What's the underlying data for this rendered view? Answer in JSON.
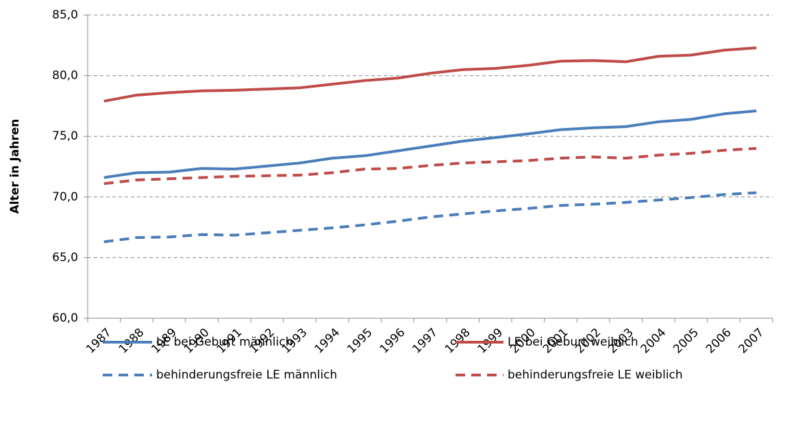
{
  "chart_data": {
    "type": "line",
    "y_label": "Alter in Jahren",
    "categories": [
      "1987",
      "1988",
      "1989",
      "1990",
      "1991",
      "1992",
      "1993",
      "1994",
      "1995",
      "1996",
      "1997",
      "1998",
      "1999",
      "2000",
      "2001",
      "2002",
      "2003",
      "2004",
      "2005",
      "2006",
      "2007"
    ],
    "ylim": [
      60,
      85
    ],
    "yticks": [
      {
        "value": 60,
        "label": "60,0"
      },
      {
        "value": 65,
        "label": "65,0"
      },
      {
        "value": 70,
        "label": "70,0"
      },
      {
        "value": 75,
        "label": "75,0"
      },
      {
        "value": 80,
        "label": "80,0"
      },
      {
        "value": 85,
        "label": "85,0"
      }
    ],
    "grid": true,
    "series": [
      {
        "name": "LE bei Geburt männlich",
        "color": "#4a7ebb",
        "dashed": false,
        "values": [
          71.6,
          72.0,
          72.05,
          72.35,
          72.3,
          72.55,
          72.8,
          73.2,
          73.4,
          73.8,
          74.2,
          74.6,
          74.9,
          75.2,
          75.55,
          75.7,
          75.8,
          76.2,
          76.4,
          76.85,
          77.1
        ]
      },
      {
        "name": "LE bei Geburt weiblich",
        "color": "#be4b48",
        "dashed": false,
        "values": [
          77.9,
          78.4,
          78.6,
          78.75,
          78.8,
          78.9,
          79.0,
          79.3,
          79.6,
          79.8,
          80.2,
          80.5,
          80.6,
          80.85,
          81.2,
          81.25,
          81.15,
          81.6,
          81.7,
          82.1,
          82.3
        ]
      },
      {
        "name": "behinderungsfreie LE männlich",
        "color": "#4a7ebb",
        "dashed": true,
        "values": [
          66.3,
          66.65,
          66.7,
          66.9,
          66.85,
          67.05,
          67.25,
          67.45,
          67.7,
          68.0,
          68.35,
          68.6,
          68.85,
          69.05,
          69.3,
          69.4,
          69.55,
          69.75,
          69.95,
          70.2,
          70.35
        ]
      },
      {
        "name": "behinderungsfreie LE weiblich",
        "color": "#be4b48",
        "dashed": true,
        "values": [
          71.1,
          71.4,
          71.5,
          71.6,
          71.7,
          71.75,
          71.8,
          72.0,
          72.3,
          72.35,
          72.6,
          72.8,
          72.9,
          73.0,
          73.2,
          73.3,
          73.2,
          73.45,
          73.6,
          73.85,
          74.0
        ]
      }
    ]
  }
}
